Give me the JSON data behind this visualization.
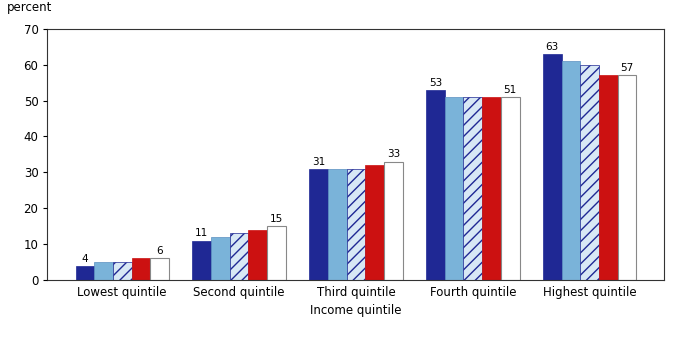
{
  "categories": [
    "Lowest quintile",
    "Second quintile",
    "Third quintile",
    "Fourth quintile",
    "Highest quintile"
  ],
  "series": {
    "1997": [
      4,
      11,
      31,
      53,
      63
    ],
    "2000": [
      5,
      12,
      31,
      51,
      61
    ],
    "2003": [
      5,
      13,
      31,
      51,
      60
    ],
    "2006": [
      6,
      14,
      32,
      51,
      57
    ],
    "2008p": [
      6,
      15,
      33,
      51,
      57
    ]
  },
  "colors": {
    "1997": "#1f2894",
    "2000": "#7ab3d9",
    "2003": "#ffffff",
    "2006": "#cc1111",
    "2008p": "#ffffff"
  },
  "edge_colors": {
    "1997": "#1f2894",
    "2000": "#5a8fc0",
    "2003": "#1f2894",
    "2006": "#cc1111",
    "2008p": "#888888"
  },
  "hatch_colors": {
    "2003": "#1f2894"
  },
  "xlabel": "Income quintile",
  "ylabel": "percent",
  "ylim": [
    0,
    70
  ],
  "yticks": [
    0,
    10,
    20,
    30,
    40,
    50,
    60,
    70
  ],
  "bar_width": 0.16,
  "label_fontsize": 7.5,
  "axis_fontsize": 8.5,
  "tick_fontsize": 8.5,
  "legend_fontsize": 8
}
